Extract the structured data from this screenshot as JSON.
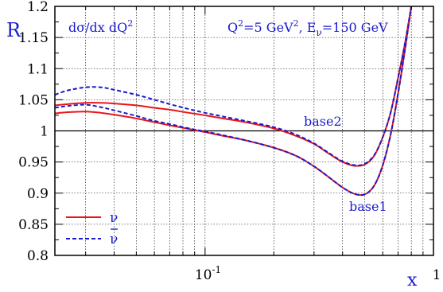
{
  "chart_data": {
    "type": "line",
    "xscale": "log",
    "xlim": [
      0.022,
      1.0
    ],
    "ylim": [
      0.8,
      1.2
    ],
    "xlabel": "x",
    "ylabel": "R",
    "x_ticks": [
      {
        "value": 0.1,
        "label": "10",
        "exponent": "-1"
      },
      {
        "value": 1.0,
        "label": "1"
      }
    ],
    "y_ticks": [
      0.8,
      0.85,
      0.9,
      0.95,
      1,
      1.05,
      1.1,
      1.15,
      1.2
    ],
    "y_tick_labels": [
      "0.8",
      "0.85",
      "0.9",
      "0.95",
      "1",
      "1.05",
      "1.1",
      "1.15",
      "1.2"
    ],
    "grid": true,
    "reference_line": 1.0,
    "annotations": {
      "quantity": {
        "base": "dσ/dx dQ",
        "sup": "2"
      },
      "kinematics": {
        "q_prefix": "Q",
        "q_sup": "2",
        "q_value": "=5 GeV",
        "q_unit_sup": "2",
        "sep": ", E",
        "e_sub": "ν",
        "e_value": "=150 GeV"
      },
      "base1": "base1",
      "base2": "base2"
    },
    "legend": {
      "position": "bottom-left",
      "entries": [
        {
          "label": "ν",
          "series_style": "solid",
          "bar": false
        },
        {
          "label": "ν",
          "series_style": "dashed",
          "bar": true
        }
      ]
    },
    "colors": {
      "nu": "#e8161b",
      "nubar": "#1a1acc",
      "text": "#1a1acc",
      "axis": "#000000",
      "grid": "#000000"
    },
    "series": [
      {
        "curve": "base2",
        "style": "solid",
        "color": "#e8161b",
        "x": [
          0.022,
          0.025,
          0.03,
          0.035,
          0.04,
          0.05,
          0.06,
          0.07,
          0.085,
          0.1,
          0.12,
          0.15,
          0.2,
          0.25,
          0.3,
          0.35,
          0.4,
          0.45,
          0.5,
          0.55,
          0.6,
          0.65,
          0.7,
          0.75,
          0.8,
          0.85
        ],
        "y": [
          1.041,
          1.043,
          1.045,
          1.045,
          1.044,
          1.041,
          1.037,
          1.034,
          1.029,
          1.025,
          1.02,
          1.014,
          1.004,
          0.992,
          0.979,
          0.963,
          0.95,
          0.944,
          0.946,
          0.96,
          0.99,
          1.03,
          1.085,
          1.14,
          1.2,
          1.26
        ]
      },
      {
        "curve": "base2",
        "style": "dashed",
        "color": "#1a1acc",
        "x": [
          0.022,
          0.025,
          0.03,
          0.035,
          0.04,
          0.05,
          0.06,
          0.07,
          0.085,
          0.1,
          0.12,
          0.15,
          0.2,
          0.25,
          0.3,
          0.35,
          0.4,
          0.45,
          0.5,
          0.55,
          0.6,
          0.65,
          0.7,
          0.75,
          0.8,
          0.85
        ],
        "y": [
          1.058,
          1.065,
          1.07,
          1.07,
          1.066,
          1.058,
          1.05,
          1.043,
          1.035,
          1.029,
          1.023,
          1.016,
          1.006,
          0.994,
          0.98,
          0.964,
          0.951,
          0.945,
          0.947,
          0.961,
          0.99,
          1.03,
          1.085,
          1.14,
          1.2,
          1.26
        ]
      },
      {
        "curve": "base1",
        "style": "solid",
        "color": "#e8161b",
        "x": [
          0.022,
          0.025,
          0.03,
          0.035,
          0.04,
          0.05,
          0.06,
          0.07,
          0.085,
          0.1,
          0.12,
          0.15,
          0.2,
          0.25,
          0.3,
          0.35,
          0.4,
          0.45,
          0.5,
          0.55,
          0.6,
          0.65,
          0.7,
          0.75,
          0.8,
          0.85
        ],
        "y": [
          1.028,
          1.03,
          1.031,
          1.029,
          1.026,
          1.02,
          1.014,
          1.009,
          1.003,
          0.998,
          0.992,
          0.985,
          0.973,
          0.96,
          0.943,
          0.925,
          0.909,
          0.899,
          0.898,
          0.912,
          0.945,
          0.995,
          1.06,
          1.13,
          1.2,
          1.26
        ]
      },
      {
        "curve": "base1",
        "style": "dashed",
        "color": "#1a1acc",
        "x": [
          0.022,
          0.025,
          0.03,
          0.035,
          0.04,
          0.05,
          0.06,
          0.07,
          0.085,
          0.1,
          0.12,
          0.15,
          0.2,
          0.25,
          0.3,
          0.35,
          0.4,
          0.45,
          0.5,
          0.55,
          0.6,
          0.65,
          0.7,
          0.75,
          0.8,
          0.85
        ],
        "y": [
          1.037,
          1.04,
          1.042,
          1.038,
          1.033,
          1.024,
          1.016,
          1.011,
          1.004,
          0.999,
          0.993,
          0.985,
          0.973,
          0.96,
          0.943,
          0.925,
          0.909,
          0.899,
          0.898,
          0.912,
          0.945,
          0.995,
          1.06,
          1.13,
          1.2,
          1.26
        ]
      }
    ]
  }
}
